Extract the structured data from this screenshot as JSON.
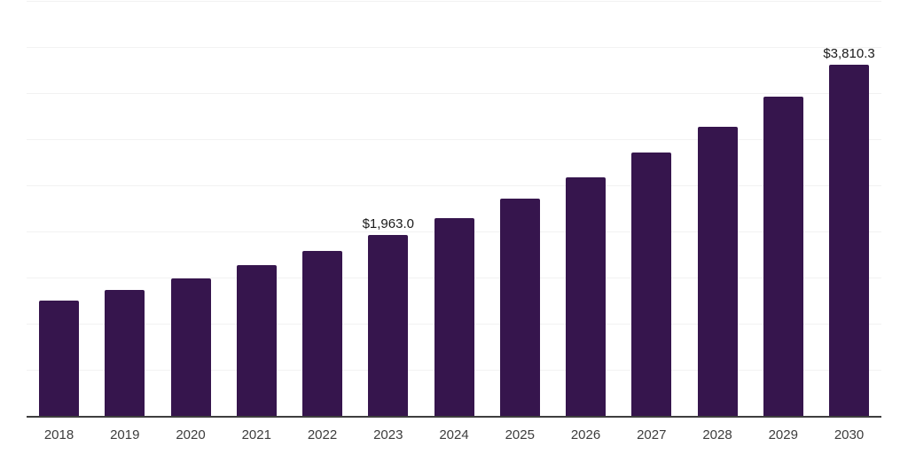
{
  "chart_data": {
    "type": "bar",
    "categories": [
      "2018",
      "2019",
      "2020",
      "2021",
      "2022",
      "2023",
      "2024",
      "2025",
      "2026",
      "2027",
      "2028",
      "2029",
      "2030"
    ],
    "values": [
      1250,
      1364,
      1490,
      1637,
      1790,
      1963.0,
      2148,
      2361,
      2590,
      2853,
      3132,
      3460,
      3810.3
    ],
    "value_labels": [
      "",
      "",
      "",
      "",
      "",
      "$1,963.0",
      "",
      "",
      "",
      "",
      "",
      "",
      "$3,810.3"
    ],
    "title": "",
    "xlabel": "",
    "ylabel": "",
    "ylim": [
      0,
      4500
    ],
    "grid": true,
    "gridline_step": 500,
    "legend": "none",
    "note": "Only the 2023 and 2030 bars carry visible data labels; other values estimated from bar heights."
  },
  "style": {
    "background": "#ffffff",
    "bar_color": "#36154d",
    "gridline_color": "#f2f2f2",
    "axis_line_color": "#3e3e3e",
    "tick_label_color": "#3d3d3d",
    "value_label_color": "#1a1a1a"
  }
}
